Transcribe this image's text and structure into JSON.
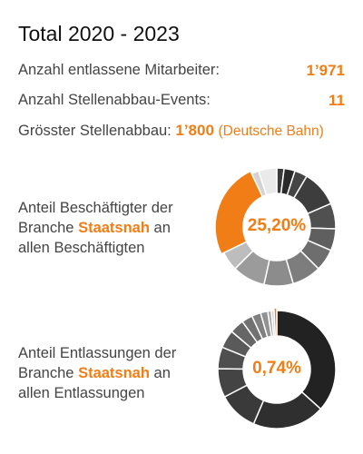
{
  "header": {
    "title": "Total 2020 - 2023"
  },
  "stats": {
    "dismissed_label": "Anzahl entlassene Mitarbeiter:",
    "dismissed_value": "1’971",
    "events_label": "Anzahl Stellenabbau-Events:",
    "events_value": "11",
    "largest_label": "Grösster Stellenabbau:",
    "largest_value": "1’800",
    "largest_company": "(Deutsche Bahn)"
  },
  "donut1": {
    "label_before": "Anteil Beschäftigter der Branche",
    "highlight": "Staatsnah",
    "label_after": "an allen Beschäftigten",
    "center": "25,20%"
  },
  "donut2": {
    "label_before": "Anteil Entlassungen der Branche",
    "highlight": "Staatsnah",
    "label_after": "an allen Entlassungen",
    "center": "0,74%"
  },
  "chart_data": [
    {
      "type": "pie",
      "center_label": "25,20%",
      "highlight_color": "#f07d15",
      "slices": [
        {
          "value": 2.0,
          "color": "#3a3a3a"
        },
        {
          "value": 3.0,
          "color": "#2a2a2a"
        },
        {
          "value": 3.5,
          "color": "#454545"
        },
        {
          "value": 10.0,
          "color": "#3d3d3d"
        },
        {
          "value": 7.0,
          "color": "#505050"
        },
        {
          "value": 6.0,
          "color": "#5f5f5f"
        },
        {
          "value": 6.0,
          "color": "#6e6e6e"
        },
        {
          "value": 8.0,
          "color": "#7d7d7d"
        },
        {
          "value": 8.0,
          "color": "#8c8c8c"
        },
        {
          "value": 9.0,
          "color": "#9b9b9b"
        },
        {
          "value": 5.3,
          "color": "#bdbdbd"
        },
        {
          "value": 25.2,
          "color": "#f07d15",
          "highlight": true
        },
        {
          "value": 2.0,
          "color": "#d4d4d4"
        },
        {
          "value": 5.0,
          "color": "#eaeaea"
        }
      ]
    },
    {
      "type": "pie",
      "center_label": "0,74%",
      "highlight_color": "#f07d15",
      "slices": [
        {
          "value": 37.0,
          "color": "#222222"
        },
        {
          "value": 20.0,
          "color": "#2f2f2f"
        },
        {
          "value": 11.0,
          "color": "#3a3a3a"
        },
        {
          "value": 8.0,
          "color": "#444444"
        },
        {
          "value": 6.0,
          "color": "#4f4f4f"
        },
        {
          "value": 5.0,
          "color": "#5a5a5a"
        },
        {
          "value": 4.0,
          "color": "#666666"
        },
        {
          "value": 3.0,
          "color": "#717171"
        },
        {
          "value": 2.5,
          "color": "#808080"
        },
        {
          "value": 2.0,
          "color": "#929292"
        },
        {
          "value": 1.0,
          "color": "#a8a8a8"
        },
        {
          "value": 0.76,
          "color": "#cfcfcf"
        },
        {
          "value": 0.74,
          "color": "#f07d15",
          "highlight": true
        }
      ]
    }
  ]
}
